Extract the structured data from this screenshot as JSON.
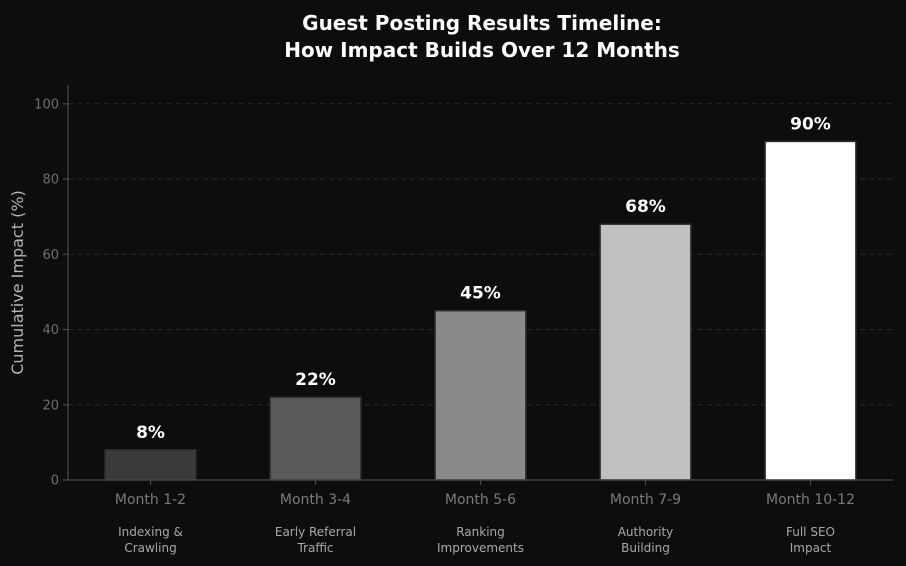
{
  "chart_data": {
    "type": "bar",
    "title": "Guest Posting Results Timeline:\nHow Impact Builds Over 12 Months",
    "xlabel": "",
    "ylabel": "Cumulative Impact (%)",
    "ylim": [
      0,
      105
    ],
    "yticks": [
      0,
      20,
      40,
      60,
      80,
      100
    ],
    "grid": true,
    "categories": [
      "Month 1-2",
      "Month 3-4",
      "Month 5-6",
      "Month 7-9",
      "Month 10-12"
    ],
    "sublabels": [
      "Indexing &\nCrawling",
      "Early Referral\nTraffic",
      "Ranking\nImprovements",
      "Authority\nBuilding",
      "Full SEO\nImpact"
    ],
    "values": [
      8,
      22,
      45,
      68,
      90
    ],
    "data_labels": [
      "8%",
      "22%",
      "45%",
      "68%",
      "90%"
    ],
    "colors": [
      "#3a3a3a",
      "#595959",
      "#8a8a8a",
      "#c0c0c0",
      "#ffffff"
    ],
    "edge_color": "#2f2f2f",
    "background": "#0d0d0d"
  }
}
